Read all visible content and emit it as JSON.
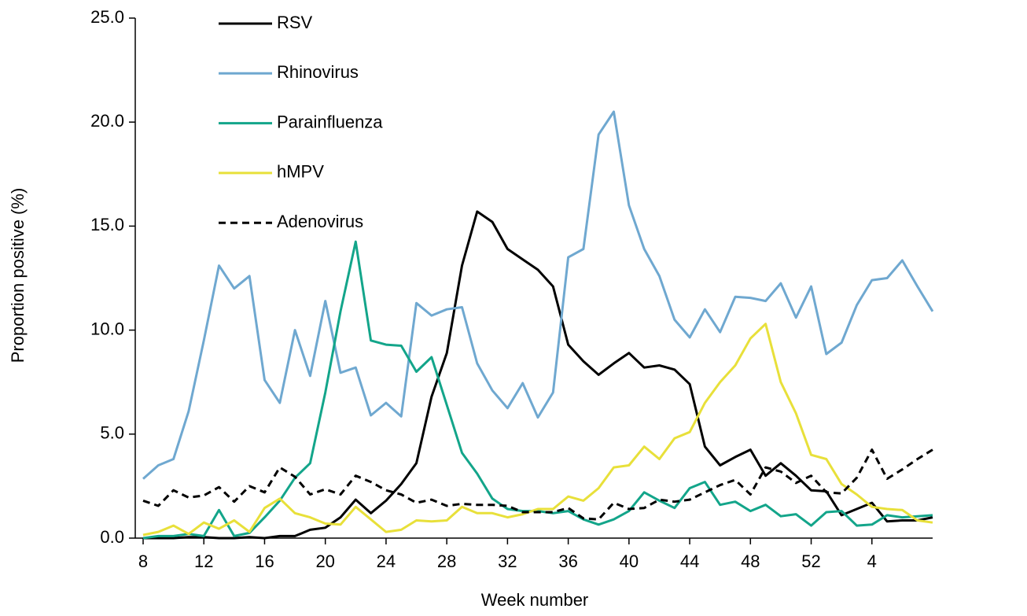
{
  "chart_data": {
    "type": "line",
    "xlabel": "Week number",
    "ylabel": "Proportion positive (%)",
    "categories": [
      "8",
      null,
      null,
      null,
      "12",
      null,
      null,
      null,
      "16",
      null,
      null,
      null,
      "20",
      null,
      null,
      null,
      "24",
      null,
      null,
      null,
      "28",
      null,
      null,
      null,
      "32",
      null,
      null,
      null,
      "36",
      null,
      null,
      null,
      "40",
      null,
      null,
      null,
      "44",
      null,
      null,
      null,
      "48",
      null,
      null,
      null,
      "52",
      null,
      null,
      null,
      "4",
      null,
      null,
      null,
      null
    ],
    "ylim": [
      0,
      25
    ],
    "yticks": [
      {
        "value": 0,
        "label": "0.0"
      },
      {
        "value": 5,
        "label": "5.0"
      },
      {
        "value": 10,
        "label": "10.0"
      },
      {
        "value": 15,
        "label": "15.0"
      },
      {
        "value": 20,
        "label": "20.0"
      },
      {
        "value": 25,
        "label": "25.0"
      }
    ],
    "grid": false,
    "legend": "upper left",
    "series": [
      {
        "name": "RSV",
        "color": "#000000",
        "dashed": false,
        "values": [
          0.0,
          0.0,
          0.0,
          0.05,
          0.05,
          0.0,
          0.0,
          0.05,
          0.0,
          0.1,
          0.1,
          0.4,
          0.5,
          1.0,
          1.85,
          1.2,
          1.8,
          2.6,
          3.6,
          6.8,
          8.9,
          13.1,
          15.7,
          15.2,
          13.9,
          13.4,
          12.9,
          12.1,
          9.3,
          8.5,
          7.85,
          8.4,
          8.9,
          8.2,
          8.3,
          8.1,
          7.4,
          4.4,
          3.5,
          3.9,
          4.25,
          3.0,
          3.6,
          3.0,
          2.3,
          2.25,
          1.1,
          1.4,
          1.7,
          0.8,
          0.85,
          0.85,
          1.0
        ]
      },
      {
        "name": "Rhinovirus",
        "color": "#6fa8d0",
        "dashed": false,
        "values": [
          2.85,
          3.5,
          3.8,
          6.1,
          9.5,
          13.1,
          12.0,
          12.6,
          7.6,
          6.5,
          10.0,
          7.8,
          11.4,
          7.95,
          8.2,
          5.9,
          6.5,
          5.85,
          11.3,
          10.7,
          11.0,
          11.1,
          8.4,
          7.1,
          6.25,
          7.45,
          5.8,
          7.0,
          13.5,
          13.9,
          19.4,
          20.5,
          16.0,
          13.9,
          12.6,
          10.5,
          9.65,
          11.0,
          9.9,
          11.6,
          11.55,
          11.4,
          12.25,
          10.6,
          12.1,
          8.85,
          9.4,
          11.2,
          12.4,
          12.5,
          13.35,
          12.1,
          10.9
        ]
      },
      {
        "name": "Parainfluenza",
        "color": "#13a58a",
        "dashed": false,
        "values": [
          0.0,
          0.1,
          0.1,
          0.2,
          0.1,
          1.35,
          0.1,
          0.25,
          1.0,
          1.8,
          2.9,
          3.6,
          7.0,
          10.9,
          14.25,
          9.5,
          9.3,
          9.25,
          8.0,
          8.7,
          6.4,
          4.1,
          3.1,
          1.9,
          1.4,
          1.3,
          1.3,
          1.2,
          1.3,
          0.9,
          0.65,
          0.9,
          1.3,
          2.2,
          1.8,
          1.45,
          2.4,
          2.7,
          1.6,
          1.75,
          1.3,
          1.6,
          1.05,
          1.15,
          0.6,
          1.25,
          1.3,
          0.6,
          0.65,
          1.1,
          1.0,
          1.05,
          1.1
        ]
      },
      {
        "name": "hMPV",
        "color": "#e8e03a",
        "dashed": false,
        "values": [
          0.15,
          0.3,
          0.6,
          0.2,
          0.75,
          0.45,
          0.85,
          0.3,
          1.45,
          1.9,
          1.2,
          1.0,
          0.7,
          0.65,
          1.5,
          0.9,
          0.3,
          0.4,
          0.85,
          0.8,
          0.85,
          1.5,
          1.2,
          1.2,
          1.0,
          1.15,
          1.4,
          1.4,
          2.0,
          1.8,
          2.4,
          3.4,
          3.5,
          4.4,
          3.8,
          4.8,
          5.1,
          6.5,
          7.5,
          8.3,
          9.6,
          10.3,
          7.5,
          6.0,
          4.0,
          3.8,
          2.6,
          2.1,
          1.5,
          1.4,
          1.35,
          0.85,
          0.75
        ]
      },
      {
        "name": "Adenovirus",
        "color": "#000000",
        "dashed": true,
        "values": [
          1.8,
          1.55,
          2.3,
          1.95,
          2.05,
          2.45,
          1.75,
          2.5,
          2.2,
          3.4,
          2.95,
          2.1,
          2.35,
          2.1,
          3.0,
          2.7,
          2.3,
          2.1,
          1.7,
          1.85,
          1.55,
          1.65,
          1.6,
          1.6,
          1.55,
          1.25,
          1.25,
          1.25,
          1.45,
          0.95,
          0.9,
          1.7,
          1.4,
          1.45,
          1.85,
          1.75,
          1.85,
          2.2,
          2.55,
          2.8,
          2.1,
          3.4,
          3.2,
          2.65,
          3.0,
          2.2,
          2.15,
          2.9,
          4.25,
          2.85,
          3.3,
          3.8,
          4.25
        ]
      }
    ]
  }
}
